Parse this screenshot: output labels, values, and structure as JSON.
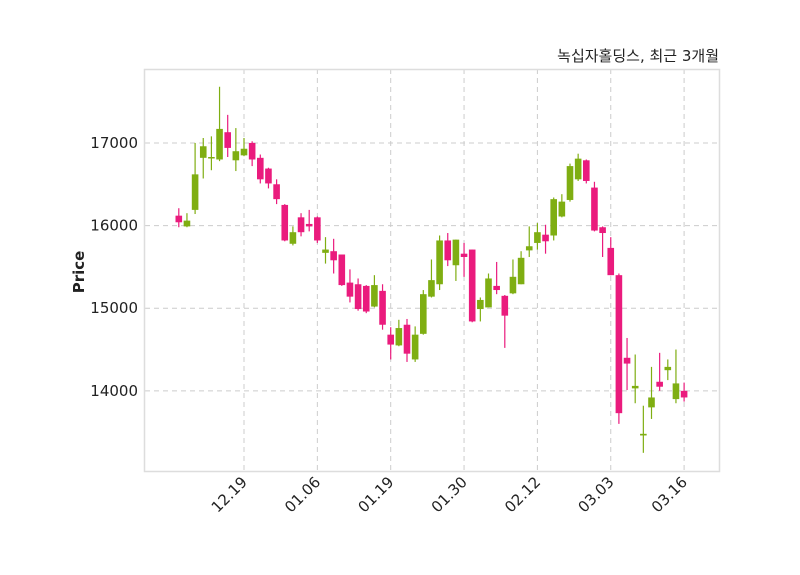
{
  "chart_data": {
    "type": "candlestick",
    "title": "녹십자홀딩스, 최근 3개월",
    "xlabel": "",
    "ylabel": "Price",
    "ylim": [
      13030,
      17895
    ],
    "yticks": [
      14000,
      15000,
      16000,
      17000
    ],
    "grid": true,
    "colors": {
      "up": "#7fae12",
      "down": "#ea1b7d",
      "grid": "#cccccc",
      "frame": "#dddddd"
    },
    "xtick_labels": [
      "12.19",
      "01.06",
      "01.19",
      "01.30",
      "02.12",
      "03.03",
      "03.16"
    ],
    "dates": [
      "12.09",
      "12.10",
      "12.11",
      "12.12",
      "12.15",
      "12.16",
      "12.17",
      "12.18",
      "12.19",
      "12.22",
      "12.23",
      "12.24",
      "12.26",
      "12.29",
      "12.30",
      "01.02",
      "01.05",
      "01.06",
      "01.07",
      "01.08",
      "01.09",
      "01.12",
      "01.13",
      "01.14",
      "01.15",
      "01.16",
      "01.19",
      "01.20",
      "01.21",
      "01.22",
      "01.23",
      "01.26",
      "01.27",
      "01.28",
      "01.29",
      "01.30",
      "02.02",
      "02.03",
      "02.04",
      "02.05",
      "02.06",
      "02.09",
      "02.10",
      "02.11",
      "02.12",
      "02.13",
      "02.19",
      "02.20",
      "02.23",
      "02.24",
      "02.25",
      "02.26",
      "02.27",
      "03.03",
      "03.04",
      "03.05",
      "03.06",
      "03.09",
      "03.10",
      "03.11",
      "03.12",
      "03.13",
      "03.16"
    ],
    "ohlc": [
      [
        16120,
        16210,
        15980,
        16040
      ],
      [
        15990,
        16150,
        15980,
        16060
      ],
      [
        16190,
        17000,
        16140,
        16620
      ],
      [
        16820,
        17060,
        16570,
        16960
      ],
      [
        16820,
        17080,
        16670,
        16830
      ],
      [
        16800,
        17680,
        16780,
        17170
      ],
      [
        17130,
        17340,
        16830,
        16940
      ],
      [
        16790,
        17180,
        16660,
        16900
      ],
      [
        16850,
        17060,
        16840,
        16930
      ],
      [
        17000,
        17020,
        16720,
        16800
      ],
      [
        16820,
        16860,
        16510,
        16560
      ],
      [
        16690,
        16700,
        16450,
        16510
      ],
      [
        16500,
        16560,
        16260,
        16320
      ],
      [
        16250,
        16260,
        15810,
        15820
      ],
      [
        15780,
        15990,
        15760,
        15920
      ],
      [
        16100,
        16150,
        15870,
        15920
      ],
      [
        16020,
        16190,
        15930,
        15990
      ],
      [
        16100,
        16110,
        15790,
        15820
      ],
      [
        15670,
        15860,
        15540,
        15710
      ],
      [
        15690,
        15840,
        15420,
        15580
      ],
      [
        15650,
        15650,
        15270,
        15280
      ],
      [
        15310,
        15470,
        15070,
        15140
      ],
      [
        15290,
        15360,
        14970,
        14990
      ],
      [
        15270,
        15280,
        14940,
        14960
      ],
      [
        15020,
        15400,
        15010,
        15280
      ],
      [
        15210,
        15290,
        14740,
        14800
      ],
      [
        14680,
        14770,
        14380,
        14560
      ],
      [
        14550,
        14860,
        14540,
        14760
      ],
      [
        14800,
        14870,
        14350,
        14450
      ],
      [
        14380,
        14780,
        14350,
        14680
      ],
      [
        14690,
        15220,
        14680,
        15170
      ],
      [
        15140,
        15590,
        15130,
        15340
      ],
      [
        15290,
        15880,
        15220,
        15820
      ],
      [
        15820,
        15910,
        15510,
        15580
      ],
      [
        15520,
        15830,
        15330,
        15830
      ],
      [
        15660,
        15790,
        15380,
        15620
      ],
      [
        15710,
        15710,
        14830,
        14840
      ],
      [
        14990,
        15130,
        14840,
        15100
      ],
      [
        15010,
        15420,
        15010,
        15360
      ],
      [
        15270,
        15560,
        15170,
        15220
      ],
      [
        15150,
        15160,
        14520,
        14910
      ],
      [
        15180,
        15590,
        15170,
        15380
      ],
      [
        15290,
        15690,
        15290,
        15610
      ],
      [
        15700,
        15990,
        15620,
        15750
      ],
      [
        15790,
        16030,
        15710,
        15920
      ],
      [
        15890,
        16010,
        15660,
        15810
      ],
      [
        15880,
        16340,
        15820,
        16320
      ],
      [
        16110,
        16380,
        16100,
        16290
      ],
      [
        16310,
        16750,
        16290,
        16720
      ],
      [
        16560,
        16870,
        16540,
        16810
      ],
      [
        16790,
        16800,
        16510,
        16540
      ],
      [
        16460,
        16530,
        15930,
        15940
      ],
      [
        15980,
        15990,
        15620,
        15910
      ],
      [
        15730,
        15860,
        15400,
        15400
      ],
      [
        15400,
        15420,
        13600,
        13730
      ],
      [
        14400,
        14640,
        14010,
        14330
      ],
      [
        14030,
        14440,
        13850,
        14060
      ],
      [
        13460,
        13820,
        13250,
        13480
      ],
      [
        13800,
        14290,
        13660,
        13920
      ],
      [
        14110,
        14460,
        14000,
        14050
      ],
      [
        14250,
        14380,
        14130,
        14290
      ],
      [
        13900,
        14500,
        13850,
        14090
      ],
      [
        14000,
        14100,
        13870,
        13920
      ]
    ]
  }
}
